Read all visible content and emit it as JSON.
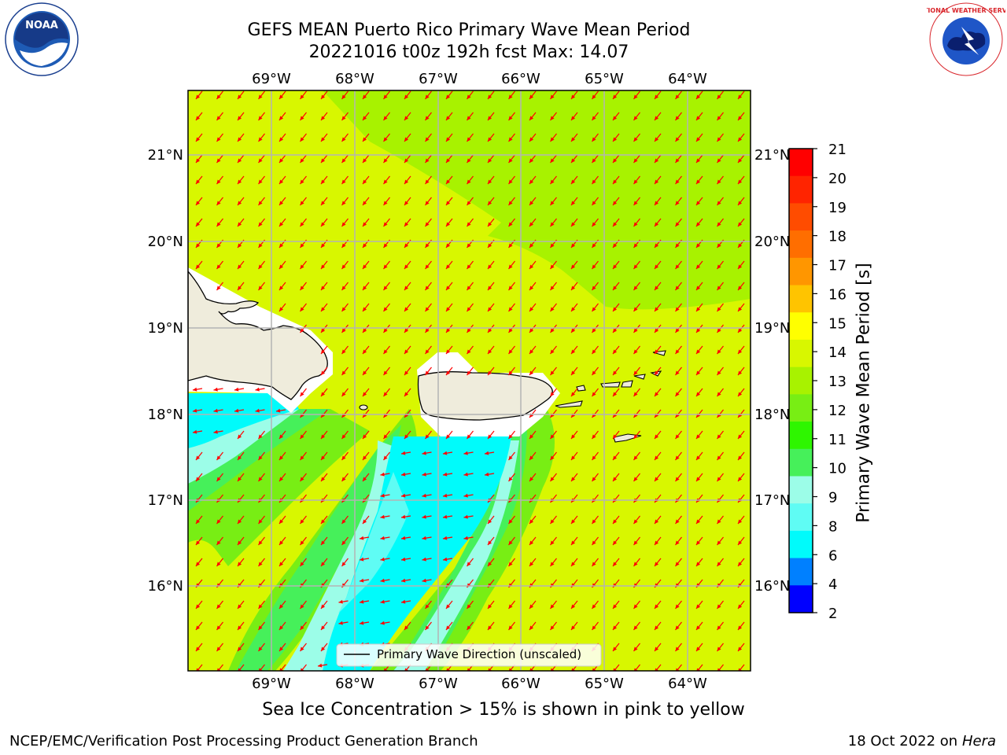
{
  "title": {
    "line1": "GEFS MEAN Puerto Rico Primary Wave Mean Period",
    "line2": "20221016 t00z 192h fcst   Max: 14.07"
  },
  "map": {
    "lon_labels": [
      "69°W",
      "68°W",
      "67°W",
      "66°W",
      "65°W",
      "64°W"
    ],
    "lat_labels": [
      "21°N",
      "20°N",
      "19°N",
      "18°N",
      "17°N",
      "16°N"
    ],
    "legend": "Primary Wave Direction (unscaled)",
    "colors": {
      "period_14_15": "#d8f700",
      "period_13_14": "#a8f200",
      "period_12_13": "#78ee14",
      "period_10_11": "#46f05a",
      "period_9_10": "#9cfde8",
      "period_8_9": "#5ffcf4",
      "period_6_8": "#00fbfb",
      "land": "#efecdc",
      "arrows": "#ff0000",
      "grid": "#b4b4b4"
    }
  },
  "colorbar": {
    "title": "Primary Wave Mean Period [s]",
    "ticks": [
      "21",
      "20",
      "19",
      "18",
      "17",
      "16",
      "15",
      "14",
      "13",
      "12",
      "11",
      "10",
      "9",
      "8",
      "6",
      "4",
      "2"
    ],
    "colors": [
      "#ff0000",
      "#ff2400",
      "#ff4c00",
      "#ff6e00",
      "#ff9600",
      "#ffc400",
      "#ffff00",
      "#d8f700",
      "#a8f200",
      "#78ee14",
      "#2ef600",
      "#46f05a",
      "#9cfde8",
      "#5ffcf4",
      "#00fbfb",
      "#0080ff",
      "#0000ff"
    ]
  },
  "caption": "Sea Ice Concentration > 15% is shown in pink to yellow",
  "footer": {
    "left": "NCEP/EMC/Verification Post Processing Product Generation Branch",
    "date": "18 Oct 2022 on",
    "host": "Hera"
  },
  "logos": {
    "noaa_text": "NOAA",
    "nws_text": "NATIONAL WEATHER SERVICE"
  }
}
